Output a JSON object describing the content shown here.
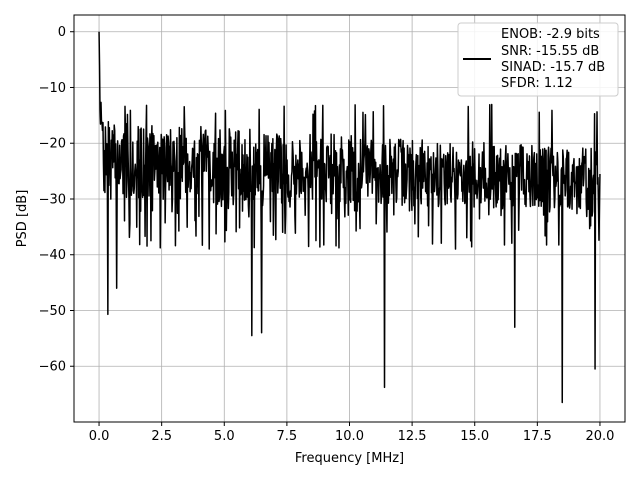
{
  "chart_data": {
    "type": "line",
    "xlabel": "Frequency [MHz]",
    "ylabel": "PSD [dB]",
    "xlim": [
      -1.0,
      21.0
    ],
    "ylim": [
      -70,
      3
    ],
    "x_ticks": [
      0.0,
      2.5,
      5.0,
      7.5,
      10.0,
      12.5,
      15.0,
      17.5,
      20.0
    ],
    "x_tick_labels": [
      "0.0",
      "2.5",
      "5.0",
      "7.5",
      "10.0",
      "12.5",
      "15.0",
      "17.5",
      "20.0"
    ],
    "y_ticks": [
      0,
      -10,
      -20,
      -30,
      -40,
      -50,
      -60
    ],
    "y_tick_labels": [
      "0",
      "−10",
      "−20",
      "−30",
      "−40",
      "−50",
      "−60"
    ],
    "grid": true,
    "legend_position": "top-right",
    "line_color": "#000000",
    "legend_entries": [
      "ENOB: -2.9 bits",
      "SNR: -15.55 dB",
      "SINAD: -15.7 dB",
      "SFDR: 1.12"
    ],
    "series": [
      {
        "x_range": [
          0.0,
          20.0
        ],
        "points": 1024,
        "peak": [
          0.0,
          0.0
        ],
        "noise_floor_range": [
          -28,
          -16
        ],
        "dips": [
          [
            0.35,
            -50.7
          ],
          [
            0.7,
            -46
          ],
          [
            6.1,
            -54.5
          ],
          [
            6.5,
            -54
          ],
          [
            11.4,
            -63.8
          ],
          [
            16.6,
            -53
          ],
          [
            18.5,
            -66.5
          ],
          [
            19.8,
            -60.5
          ]
        ],
        "values": null
      }
    ]
  }
}
